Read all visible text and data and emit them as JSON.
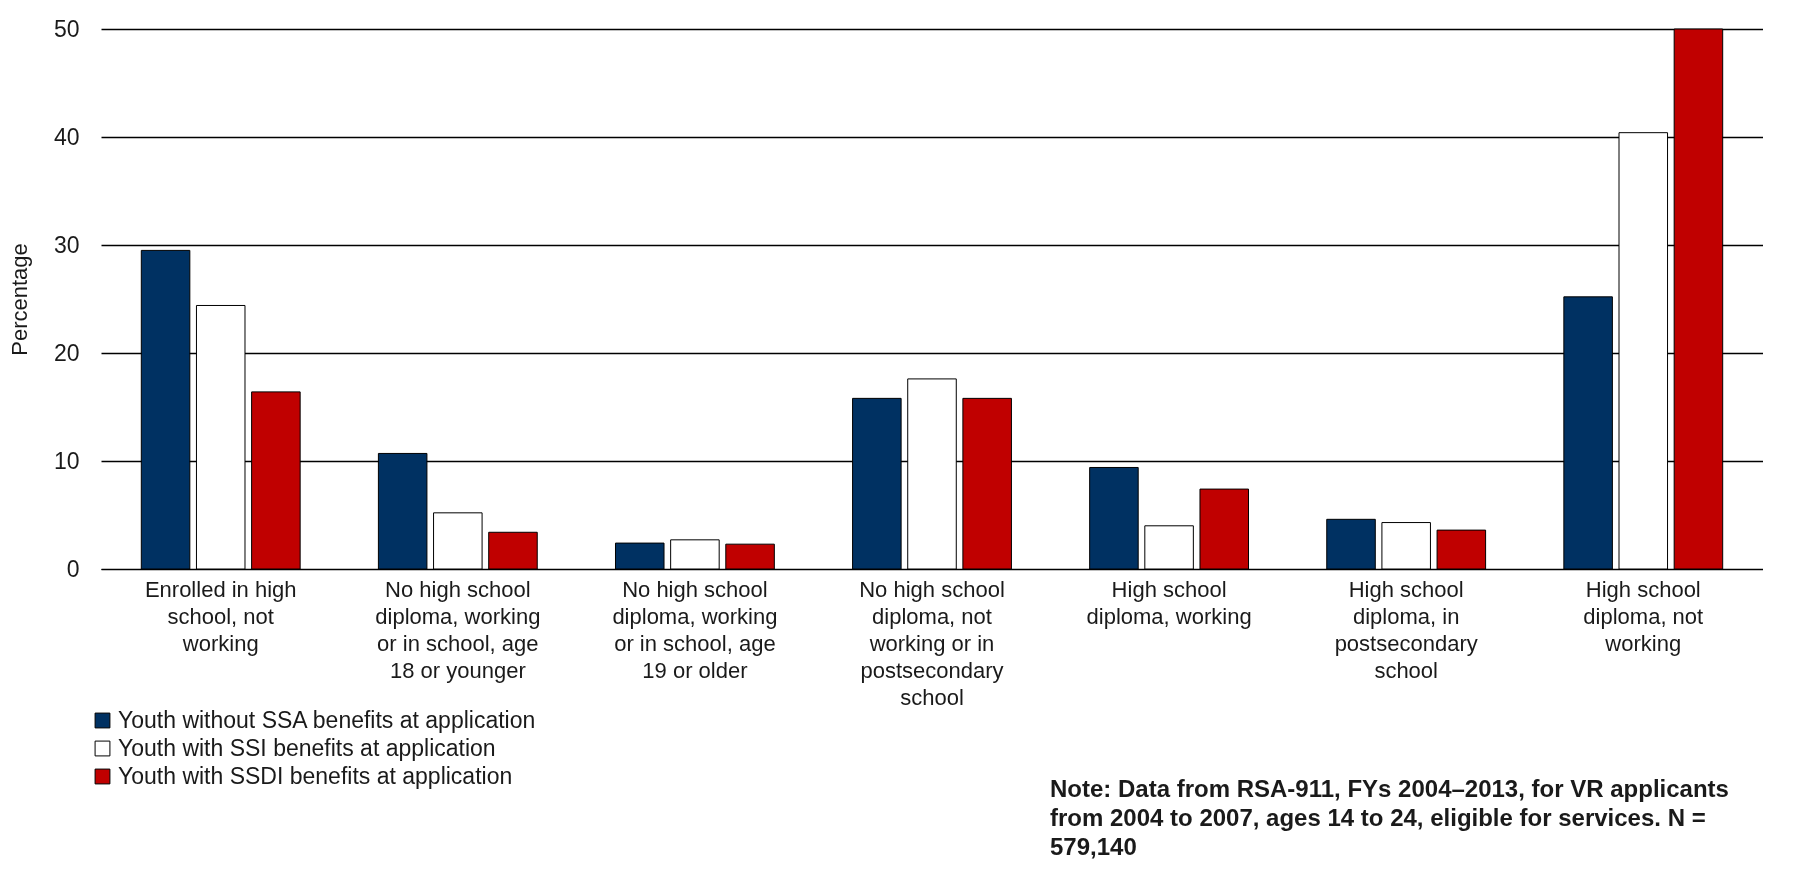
{
  "chart_data": {
    "type": "bar",
    "ylabel": "Percentage",
    "categories": [
      "Enrolled in high school, not working",
      "No high school diploma, working or in school, age 18 or younger",
      "No high school diploma, working or in school, age 19 or older",
      "No high school diploma, not working or in postsecondary school",
      "High school diploma, working",
      "High school diploma, in postsecondary school",
      "High school diploma, not working"
    ],
    "series": [
      {
        "name": "Youth without SSA benefits at application",
        "color": "#003162",
        "values": [
          29.5,
          10.7,
          2.4,
          15.8,
          9.4,
          4.6,
          25.2
        ]
      },
      {
        "name": "Youth with SSI benefits at application",
        "color": "#ffffff",
        "values": [
          24.4,
          5.2,
          2.7,
          17.6,
          4.0,
          4.3,
          40.4
        ]
      },
      {
        "name": "Youth with SSDI benefits at application",
        "color": "#c00000",
        "values": [
          16.4,
          3.4,
          2.3,
          15.8,
          7.4,
          3.6,
          50
        ]
      }
    ],
    "ylim": [
      0,
      50
    ],
    "yticks": [
      0,
      10,
      20,
      30,
      40,
      50
    ],
    "grid": "y",
    "legend": "bottom left",
    "annotations": [
      "Note: Data from RSA-911, FYs 2004–2013, for VR applicants from 2004 to 2007, ages 14 to 24, eligible for services. N = 579,140"
    ]
  }
}
